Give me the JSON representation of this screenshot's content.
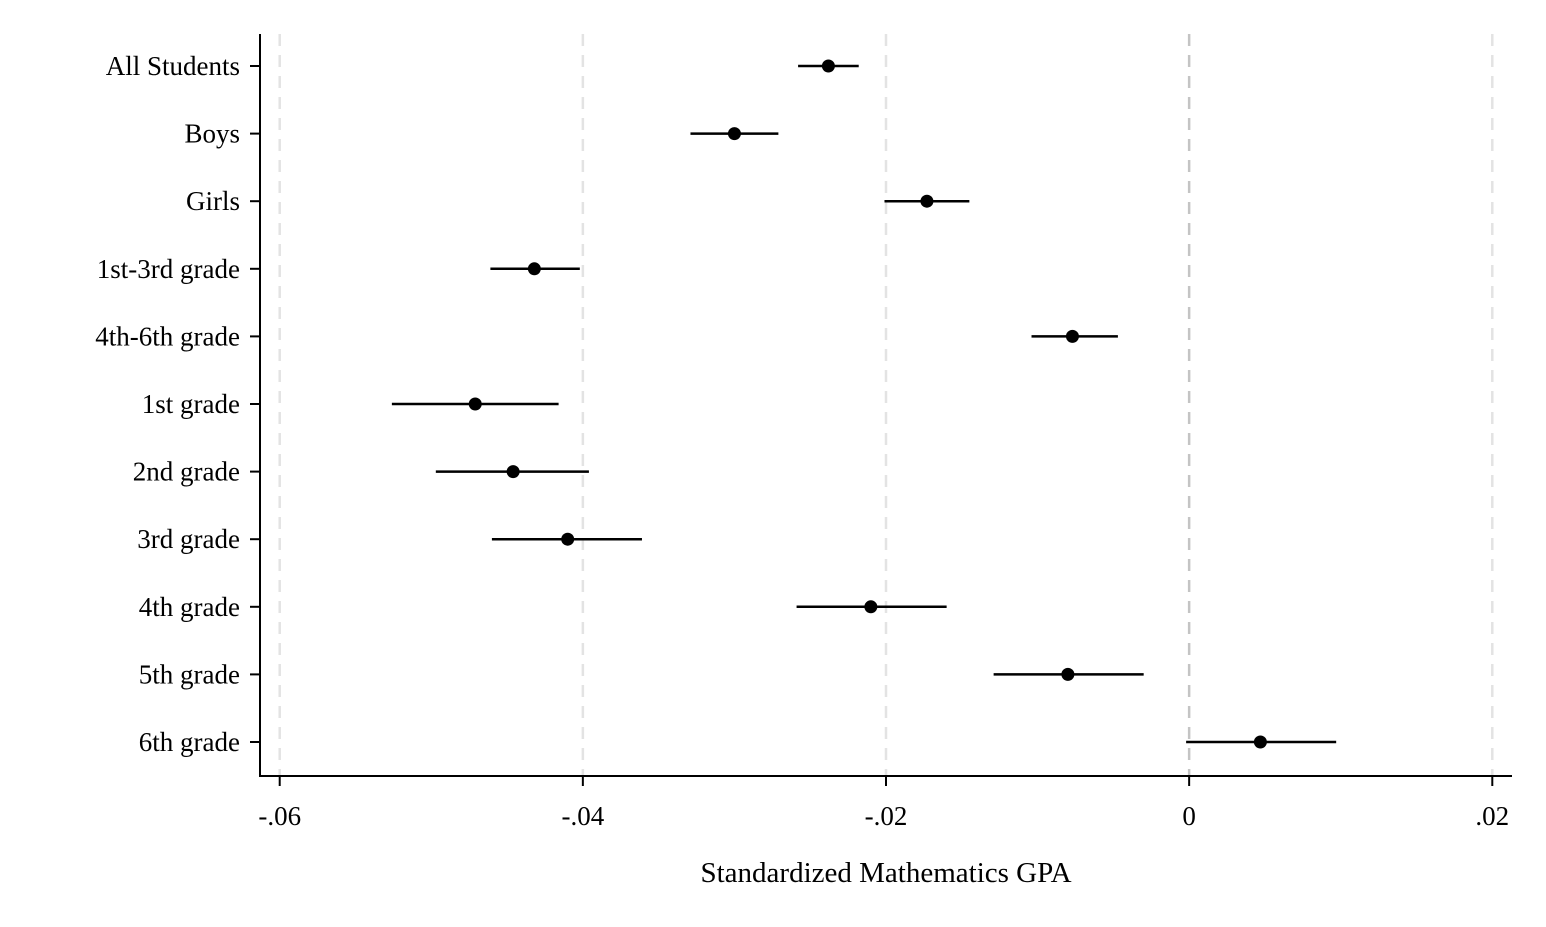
{
  "chart_data": {
    "type": "scatter",
    "subtype": "coefficient-plot",
    "xlabel": "Standardized Mathematics GPA",
    "ylabel": "",
    "xlim": [
      -0.0613,
      0.0213
    ],
    "x_ticks": [
      -0.06,
      -0.04,
      -0.02,
      0,
      0.02
    ],
    "x_tick_labels": [
      "-.06",
      "-.04",
      "-.02",
      "0",
      ".02"
    ],
    "reference_line_x": 0,
    "grid": "vertical dashed at x ticks",
    "categories": [
      "All Students",
      "Boys",
      "Girls",
      "1st-3rd grade",
      "4th-6th grade",
      "1st grade",
      "2nd grade",
      "3rd grade",
      "4th grade",
      "5th grade",
      "6th grade"
    ],
    "estimates": [
      -0.0238,
      -0.03,
      -0.0173,
      -0.0432,
      -0.0077,
      -0.0471,
      -0.0446,
      -0.041,
      -0.021,
      -0.008,
      0.0047
    ],
    "ci_low": [
      -0.0258,
      -0.0329,
      -0.0201,
      -0.0461,
      -0.0104,
      -0.0526,
      -0.0497,
      -0.046,
      -0.0259,
      -0.0129,
      -0.0002
    ],
    "ci_high": [
      -0.0218,
      -0.0271,
      -0.0145,
      -0.0402,
      -0.0047,
      -0.0416,
      -0.0396,
      -0.0361,
      -0.016,
      -0.003,
      0.0097
    ],
    "colors": {
      "marker": "#000000",
      "grid": "#e3e3e3",
      "reference_line": "#c4c4c4",
      "axis": "#000000"
    }
  }
}
